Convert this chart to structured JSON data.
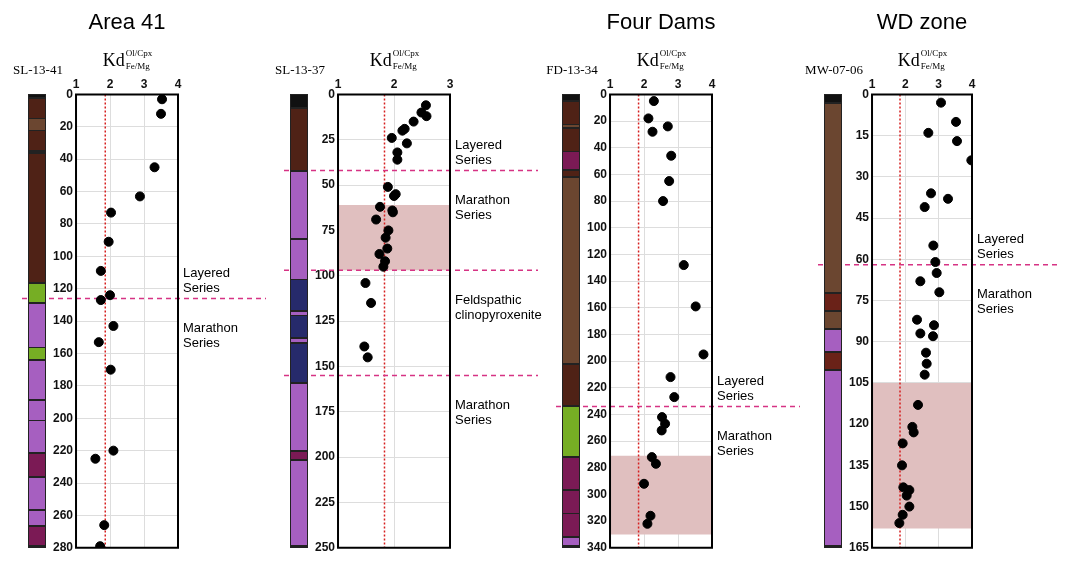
{
  "chart_data": [
    {
      "type": "scatter",
      "title": "Area 41",
      "xlabel": "Kd$_{Fe/Mg}$$^{Ol/Cpx}$",
      "xlim": [
        1,
        4
      ],
      "xticks": [
        1,
        2,
        3,
        4
      ],
      "ylim": [
        280,
        0
      ],
      "yticks": [
        0,
        20,
        40,
        60,
        80,
        100,
        120,
        140,
        160,
        180,
        200,
        220,
        240,
        260,
        280
      ],
      "grid": true,
      "marker": "circle",
      "x": [
        3.53,
        3.5,
        3.31,
        2.88,
        2.03,
        1.96,
        1.73,
        2.0,
        1.73,
        2.1,
        1.67,
        2.02,
        2.1,
        1.57,
        1.83,
        1.71
      ],
      "values": [
        3,
        12,
        45,
        63,
        73,
        91,
        109,
        124,
        127,
        143,
        153,
        170,
        220,
        225,
        266,
        279
      ],
      "color": "#000000",
      "ref_lines": [
        {
          "axis": "x",
          "value": 1.86,
          "color": "#d62020",
          "line_style": "dotted"
        },
        {
          "axis": "y",
          "value": 126,
          "label": "Layered Series",
          "color": "#d63384",
          "line_style": "dashed"
        }
      ],
      "annotations": [
        "SL-13-41",
        "Marathon Series"
      ]
    },
    {
      "type": "scatter",
      "xlabel": "Kd$_{Fe/Mg}$$^{Ol/Cpx}$",
      "xlim": [
        1,
        3
      ],
      "xticks": [
        1,
        2,
        3
      ],
      "ylim": [
        250,
        0
      ],
      "yticks": [
        0,
        25,
        50,
        75,
        100,
        125,
        150,
        175,
        200,
        225,
        250
      ],
      "grid": true,
      "marker": "circle",
      "x": [
        2.57,
        2.49,
        2.58,
        2.35,
        2.19,
        2.15,
        1.96,
        2.23,
        2.06,
        2.06,
        1.89,
        2.03,
        2.0,
        1.75,
        1.97,
        1.98,
        1.68,
        1.9,
        1.85,
        1.88,
        1.74,
        1.84,
        1.81,
        1.49,
        1.59,
        1.47,
        1.53
      ],
      "values": [
        6,
        10,
        12,
        15,
        19,
        20,
        24,
        27,
        32,
        36,
        51,
        55,
        56,
        62,
        64,
        65,
        69,
        75,
        79,
        85,
        88,
        92,
        95,
        104,
        115,
        139,
        145
      ],
      "color": "#000000",
      "ref_lines": [
        {
          "axis": "x",
          "value": 1.83,
          "color": "#d62020",
          "line_style": "dotted"
        },
        {
          "axis": "y",
          "value": 42,
          "label": "Layered Series",
          "color": "#d63384",
          "line_style": "dashed"
        },
        {
          "axis": "y",
          "value": 97,
          "color": "#d63384",
          "line_style": "dashed"
        },
        {
          "axis": "y",
          "value": 155,
          "color": "#d63384",
          "line_style": "dashed"
        }
      ],
      "bands": [
        {
          "axis": "y",
          "from": 61,
          "to": 97,
          "color": "#e0bfbf"
        }
      ],
      "annotations": [
        "SL-13-37",
        "Marathon Series",
        "Feldspathic clinopyroxenite",
        "Marathon Series"
      ]
    },
    {
      "type": "scatter",
      "title": "Four Dams",
      "xlabel": "Kd$_{Fe/Mg}$$^{Ol/Cpx}$",
      "xlim": [
        1,
        4
      ],
      "xticks": [
        1,
        2,
        3,
        4
      ],
      "ylim": [
        340,
        0
      ],
      "yticks": [
        0,
        20,
        40,
        60,
        80,
        100,
        120,
        140,
        160,
        180,
        200,
        220,
        240,
        260,
        280,
        300,
        320,
        340
      ],
      "grid": true,
      "marker": "circle",
      "x": [
        2.29,
        2.13,
        2.7,
        2.25,
        2.8,
        2.74,
        2.56,
        3.17,
        3.52,
        3.75,
        2.78,
        2.89,
        2.53,
        2.62,
        2.52,
        2.23,
        2.35,
        2.0,
        2.19,
        2.1
      ],
      "values": [
        5,
        18,
        24,
        28,
        46,
        65,
        80,
        128,
        159,
        195,
        212,
        227,
        242,
        247,
        252,
        272,
        277,
        292,
        316,
        322
      ],
      "color": "#000000",
      "ref_lines": [
        {
          "axis": "x",
          "value": 1.84,
          "color": "#d62020",
          "line_style": "dotted"
        },
        {
          "axis": "y",
          "value": 234,
          "label": "Layered Series",
          "color": "#d63384",
          "line_style": "dashed"
        }
      ],
      "bands": [
        {
          "axis": "y",
          "from": 271,
          "to": 330,
          "color": "#e0bfbf"
        }
      ],
      "annotations": [
        "FD-13-34",
        "Marathon Series"
      ]
    },
    {
      "type": "scatter",
      "title": "WD zone",
      "xlabel": "Kd$_{Fe/Mg}$$^{Ol/Cpx}$",
      "xlim": [
        1,
        4
      ],
      "xticks": [
        1,
        2,
        3,
        4
      ],
      "ylim": [
        165,
        0
      ],
      "yticks": [
        0,
        15,
        30,
        45,
        60,
        75,
        90,
        105,
        120,
        135,
        150,
        165
      ],
      "grid": true,
      "marker": "circle",
      "x": [
        3.07,
        3.52,
        2.69,
        3.55,
        3.98,
        2.77,
        3.28,
        2.58,
        2.84,
        2.9,
        2.94,
        2.45,
        3.02,
        2.35,
        2.86,
        2.45,
        2.83,
        2.62,
        2.64,
        2.58,
        2.38,
        2.21,
        2.25,
        1.92,
        1.9,
        1.94,
        2.12,
        2.04,
        2.12,
        1.92,
        1.82
      ],
      "values": [
        3,
        10,
        14,
        17,
        24,
        36,
        38,
        41,
        55,
        61,
        65,
        68,
        72,
        82,
        84,
        87,
        88,
        94,
        98,
        102,
        113,
        121,
        123,
        127,
        135,
        143,
        144,
        146,
        150,
        153,
        156
      ],
      "color": "#000000",
      "ref_lines": [
        {
          "axis": "x",
          "value": 1.84,
          "color": "#d62020",
          "line_style": "dotted"
        },
        {
          "axis": "y",
          "value": 62,
          "label": "Layered Series",
          "color": "#d63384",
          "line_style": "dashed"
        }
      ],
      "bands": [
        {
          "axis": "y",
          "from": 105,
          "to": 158,
          "color": "#e0bfbf"
        }
      ],
      "annotations": [
        "MW-07-06",
        "Marathon Series"
      ]
    }
  ]
}
